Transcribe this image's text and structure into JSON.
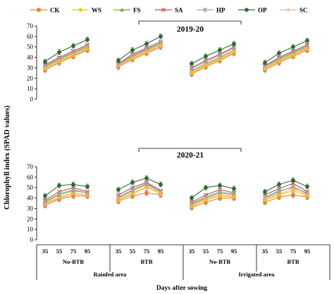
{
  "chart_data": {
    "type": "line",
    "ylabel": "Chlorophyll index (SPAD values)",
    "xlabel": "Days after sowing",
    "x": [
      "35",
      "55",
      "75",
      "95"
    ],
    "ylim": [
      0,
      70
    ],
    "yticks": [
      0,
      10,
      20,
      30,
      40,
      50,
      60,
      70
    ],
    "series_names": [
      "CK",
      "WS",
      "FS",
      "SA",
      "HP",
      "OP",
      "SC"
    ],
    "series_styles": [
      {
        "color": "#ED7D31",
        "marker": "square"
      },
      {
        "color": "#FFC000",
        "marker": "diamond"
      },
      {
        "color": "#70AD47",
        "marker": "triangle"
      },
      {
        "color": "#C0504D",
        "marker": "x"
      },
      {
        "color": "#A5A5A5",
        "marker": "star"
      },
      {
        "color": "#2E6B30",
        "marker": "circle"
      },
      {
        "color": "#F4B183",
        "marker": "plus"
      }
    ],
    "groups": [
      {
        "sub": "No-BTB",
        "area": "Rainfed area"
      },
      {
        "sub": "BTB",
        "area": ""
      },
      {
        "sub": "No-BTB",
        "area": "Irrigated area"
      },
      {
        "sub": "BTB",
        "area": ""
      }
    ],
    "panels": [
      {
        "year": "2019-20",
        "groups": [
          {
            "values": [
              [
                28,
                35,
                41,
                47
              ],
              [
                29,
                36,
                42,
                48
              ],
              [
                31,
                38,
                44,
                50
              ],
              [
                33,
                40,
                46,
                52
              ],
              [
                32,
                39,
                45,
                51
              ],
              [
                36,
                45,
                51,
                57
              ],
              [
                30,
                37,
                43,
                49
              ]
            ]
          },
          {
            "values": [
              [
                31,
                38,
                44,
                50
              ],
              [
                32,
                39,
                45,
                51
              ],
              [
                33,
                41,
                47,
                53
              ],
              [
                34,
                43,
                49,
                55
              ],
              [
                33,
                42,
                48,
                54
              ],
              [
                37,
                47,
                53,
                60
              ],
              [
                32,
                40,
                46,
                52
              ]
            ]
          },
          {
            "values": [
              [
                24,
                31,
                37,
                44
              ],
              [
                25,
                32,
                38,
                45
              ],
              [
                27,
                34,
                40,
                47
              ],
              [
                30,
                37,
                43,
                50
              ],
              [
                29,
                36,
                42,
                49
              ],
              [
                34,
                41,
                47,
                53
              ],
              [
                26,
                33,
                39,
                46
              ]
            ]
          },
          {
            "values": [
              [
                28,
                35,
                41,
                47
              ],
              [
                29,
                36,
                42,
                48
              ],
              [
                31,
                38,
                44,
                50
              ],
              [
                32,
                40,
                46,
                52
              ],
              [
                31,
                39,
                45,
                51
              ],
              [
                35,
                44,
                50,
                56
              ],
              [
                30,
                37,
                43,
                49
              ]
            ]
          }
        ]
      },
      {
        "year": "2020-21",
        "groups": [
          {
            "values": [
              [
                33,
                39,
                42,
                42
              ],
              [
                35,
                41,
                45,
                43
              ],
              [
                36,
                43,
                47,
                45
              ],
              [
                38,
                46,
                50,
                46
              ],
              [
                37,
                44,
                48,
                45
              ],
              [
                42,
                52,
                53,
                51
              ],
              [
                34,
                40,
                44,
                43
              ]
            ]
          },
          {
            "values": [
              [
                37,
                42,
                45,
                43
              ],
              [
                38,
                44,
                50,
                44
              ],
              [
                40,
                47,
                53,
                46
              ],
              [
                43,
                50,
                55,
                47
              ],
              [
                41,
                48,
                54,
                46
              ],
              [
                48,
                55,
                59,
                53
              ],
              [
                39,
                45,
                51,
                45
              ]
            ]
          },
          {
            "values": [
              [
                31,
                36,
                40,
                40
              ],
              [
                32,
                38,
                42,
                41
              ],
              [
                34,
                40,
                45,
                43
              ],
              [
                36,
                43,
                48,
                45
              ],
              [
                35,
                41,
                46,
                44
              ],
              [
                40,
                50,
                52,
                49
              ],
              [
                33,
                39,
                43,
                42
              ]
            ]
          },
          {
            "values": [
              [
                36,
                41,
                43,
                41
              ],
              [
                38,
                43,
                47,
                42
              ],
              [
                40,
                46,
                51,
                44
              ],
              [
                43,
                49,
                54,
                46
              ],
              [
                41,
                47,
                50,
                45
              ],
              [
                46,
                53,
                57,
                51
              ],
              [
                39,
                44,
                49,
                43
              ]
            ]
          }
        ]
      }
    ]
  }
}
